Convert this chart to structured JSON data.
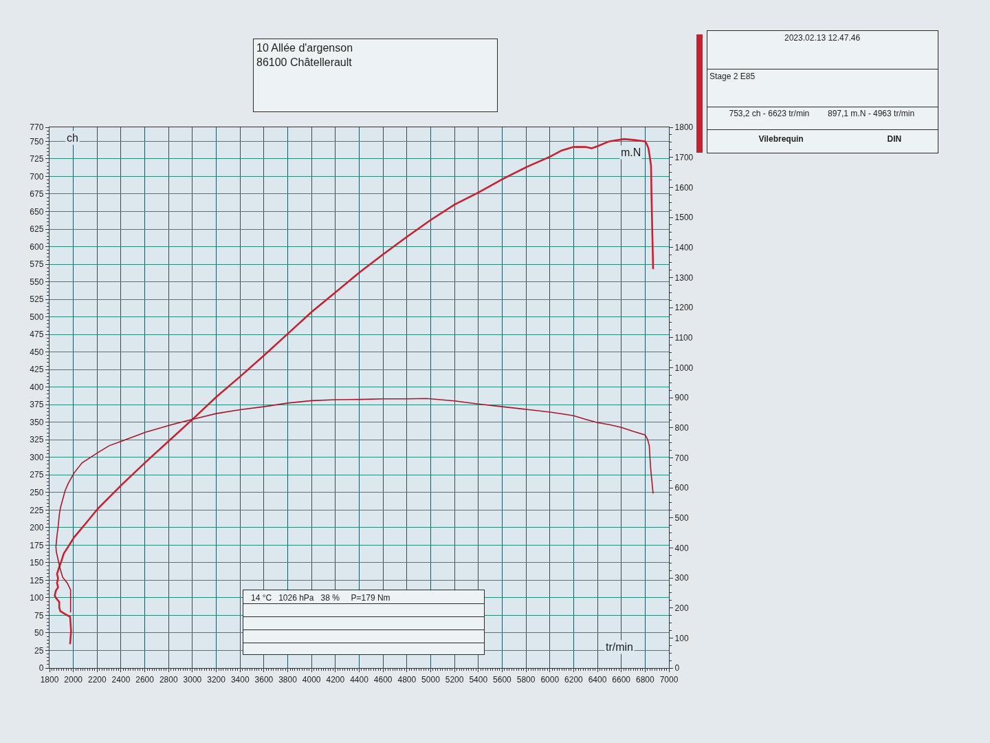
{
  "chart_data": {
    "type": "line",
    "xlabel": "tr/min",
    "ylabel": "ch",
    "y2label": "m.N",
    "xlim": [
      1800,
      7000
    ],
    "xticks": [
      1800,
      2000,
      2200,
      2400,
      2600,
      2800,
      3000,
      3200,
      3400,
      3600,
      3800,
      4000,
      4200,
      4400,
      4600,
      4800,
      5000,
      5200,
      5400,
      5600,
      5800,
      6000,
      6200,
      6400,
      6600,
      6800,
      7000
    ],
    "ylim": [
      0,
      770
    ],
    "yticks": [
      0,
      25,
      50,
      75,
      100,
      125,
      150,
      175,
      200,
      225,
      250,
      275,
      300,
      325,
      350,
      375,
      400,
      425,
      450,
      475,
      500,
      525,
      550,
      575,
      600,
      625,
      650,
      675,
      700,
      725,
      750,
      770
    ],
    "y2lim": [
      0,
      1800
    ],
    "y2ticks": [
      0,
      100,
      200,
      300,
      400,
      500,
      600,
      700,
      800,
      900,
      1000,
      1100,
      1200,
      1300,
      1400,
      1500,
      1600,
      1700,
      1800
    ],
    "grid": true,
    "series": [
      {
        "color": "#c8202e",
        "x": [
          1973,
          1981,
          1973,
          1939,
          1891,
          1882,
          1882,
          1853,
          1844,
          1853,
          1872,
          1863,
          1872,
          1863,
          1882,
          1901,
          1920,
          1958,
          2006,
          2100,
          2206,
          2406,
          2606,
          2806,
          3000,
          3200,
          3400,
          3600,
          3800,
          4000,
          4200,
          4400,
          4600,
          4800,
          5000,
          5200,
          5400,
          5600,
          5800,
          6000,
          6100,
          6200,
          6300,
          6350,
          6400,
          6500,
          6623,
          6700,
          6800,
          6814,
          6828,
          6840,
          6850,
          6853,
          6860,
          6867
        ],
        "values": [
          34,
          53,
          73,
          76,
          81,
          86,
          94,
          100,
          103,
          110,
          115,
          121,
          128,
          134,
          144,
          153,
          163,
          173,
          186,
          205,
          227,
          261,
          293,
          324,
          354,
          386,
          415,
          445,
          476,
          507,
          535,
          563,
          589,
          614,
          638,
          660,
          677,
          696,
          713,
          728,
          737,
          742,
          742,
          740,
          743,
          750,
          753.2,
          752,
          750,
          746,
          740,
          727,
          715,
          678,
          625,
          568
        ]
      },
      {
        "color": "#a8162a",
        "axis": "y2",
        "x": [
          1977,
          1977,
          1949,
          1911,
          1891,
          1873,
          1857,
          1854,
          1863,
          1873,
          1882,
          1891,
          1930,
          1958,
          2006,
          2073,
          2206,
          2301,
          2406,
          2606,
          2806,
          3000,
          3200,
          3400,
          3600,
          3800,
          4000,
          4200,
          4400,
          4600,
          4800,
          4963,
          5000,
          5200,
          5400,
          5600,
          5800,
          6000,
          6100,
          6200,
          6300,
          6400,
          6500,
          6600,
          6700,
          6800,
          6820,
          6835,
          6845,
          6850,
          6867
        ],
        "values": [
          185,
          260,
          283,
          302,
          328,
          359,
          388,
          404,
          441,
          472,
          509,
          532,
          589,
          615,
          649,
          683,
          717,
          740,
          755,
          785,
          808,
          828,
          847,
          860,
          870,
          882,
          890,
          893,
          894,
          896,
          896,
          897.1,
          896,
          889,
          879,
          870,
          861,
          852,
          846,
          840,
          828,
          817,
          810,
          801,
          788,
          776,
          762,
          740,
          672,
          650,
          581
        ]
      }
    ],
    "annotations": [
      "10 Allée d'argenson",
      "86100 Châtellerault",
      "2023.02.13 12.47.46",
      "Stage 2 E85",
      "753,2 ch - 6623 tr/min",
      "897,1 m.N - 4963 tr/min",
      "Vilebrequin",
      "DIN",
      "14 °C   1026 hPa   38 %     P=179 Nm"
    ]
  }
}
